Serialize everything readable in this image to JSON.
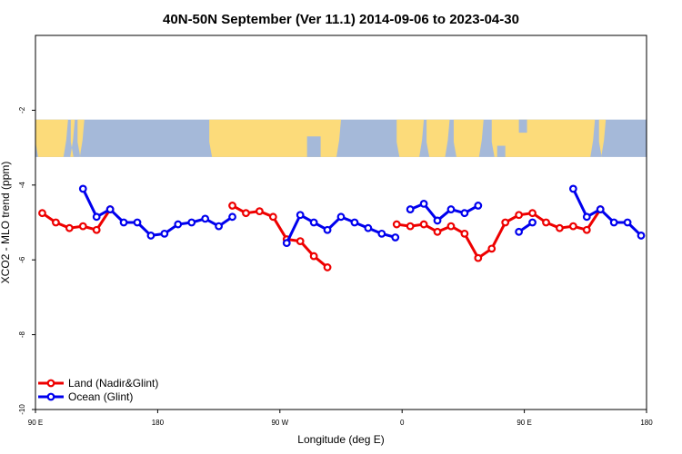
{
  "chart_data": {
    "type": "line",
    "title": "40N-50N September (Ver 11.1)   2014-09-06 to 2023-04-30",
    "xlabel": "Longitude (deg E)",
    "ylabel": "XCO2 - MLO trend (ppm)",
    "xlim": [
      90,
      540
    ],
    "ylim": [
      -10,
      0
    ],
    "x_ticks": [
      {
        "value": 90,
        "label": "90 E"
      },
      {
        "value": 180,
        "label": "180"
      },
      {
        "value": 270,
        "label": "90 W"
      },
      {
        "value": 360,
        "label": "0"
      },
      {
        "value": 450,
        "label": "90 E"
      },
      {
        "value": 540,
        "label": "180"
      }
    ],
    "y_ticks": [
      {
        "value": -2,
        "label": "-2"
      },
      {
        "value": -4,
        "label": "-4"
      },
      {
        "value": -6,
        "label": "-6"
      },
      {
        "value": -8,
        "label": "-8"
      },
      {
        "value": -10,
        "label": "-10"
      }
    ],
    "map_band": {
      "ymin": -3.25,
      "ymax": -2.25,
      "ocean_color": "#a5b9d9",
      "land_color": "#fcdb7a"
    },
    "legend_position": "bottom-left",
    "series": [
      {
        "name": "Land (Nadir&Glint)",
        "color": "#ee0000",
        "segments": [
          [
            [
              95,
              -4.75
            ],
            [
              105,
              -5.0
            ],
            [
              115,
              -5.15
            ],
            [
              125,
              -5.1
            ],
            [
              135,
              -5.2
            ],
            [
              145,
              -4.65
            ]
          ],
          [
            [
              235,
              -4.55
            ],
            [
              245,
              -4.75
            ],
            [
              255,
              -4.7
            ],
            [
              265,
              -4.85
            ],
            [
              275,
              -5.45
            ],
            [
              285,
              -5.5
            ],
            [
              295,
              -5.9
            ],
            [
              305,
              -6.2
            ]
          ],
          [
            [
              356,
              -5.05
            ],
            [
              366,
              -5.1
            ],
            [
              376,
              -5.05
            ],
            [
              386,
              -5.25
            ],
            [
              396,
              -5.1
            ],
            [
              406,
              -5.3
            ],
            [
              416,
              -5.95
            ],
            [
              426,
              -5.7
            ],
            [
              436,
              -5.0
            ],
            [
              446,
              -4.8
            ],
            [
              456,
              -4.75
            ],
            [
              466,
              -5.0
            ],
            [
              476,
              -5.15
            ],
            [
              486,
              -5.1
            ],
            [
              496,
              -5.2
            ],
            [
              506,
              -4.65
            ]
          ]
        ]
      },
      {
        "name": "Ocean (Glint)",
        "color": "#0000ee",
        "segments": [
          [
            [
              125,
              -4.1
            ],
            [
              135,
              -4.85
            ],
            [
              145,
              -4.65
            ],
            [
              155,
              -5.0
            ],
            [
              165,
              -5.0
            ],
            [
              175,
              -5.35
            ],
            [
              185,
              -5.3
            ],
            [
              195,
              -5.05
            ],
            [
              205,
              -5.0
            ],
            [
              215,
              -4.9
            ],
            [
              225,
              -5.1
            ],
            [
              235,
              -4.85
            ]
          ],
          [
            [
              275,
              -5.55
            ],
            [
              285,
              -4.8
            ],
            [
              295,
              -5.0
            ],
            [
              305,
              -5.2
            ],
            [
              315,
              -4.85
            ],
            [
              325,
              -5.0
            ],
            [
              335,
              -5.15
            ],
            [
              345,
              -5.3
            ],
            [
              355,
              -5.4
            ]
          ],
          [
            [
              366,
              -4.65
            ],
            [
              376,
              -4.5
            ],
            [
              386,
              -4.95
            ],
            [
              396,
              -4.65
            ],
            [
              406,
              -4.75
            ],
            [
              416,
              -4.55
            ]
          ],
          [
            [
              446,
              -5.25
            ],
            [
              456,
              -5.0
            ]
          ],
          [
            [
              486,
              -4.1
            ],
            [
              496,
              -4.85
            ],
            [
              506,
              -4.65
            ],
            [
              516,
              -5.0
            ],
            [
              526,
              -5.0
            ],
            [
              536,
              -5.35
            ]
          ]
        ]
      }
    ]
  }
}
